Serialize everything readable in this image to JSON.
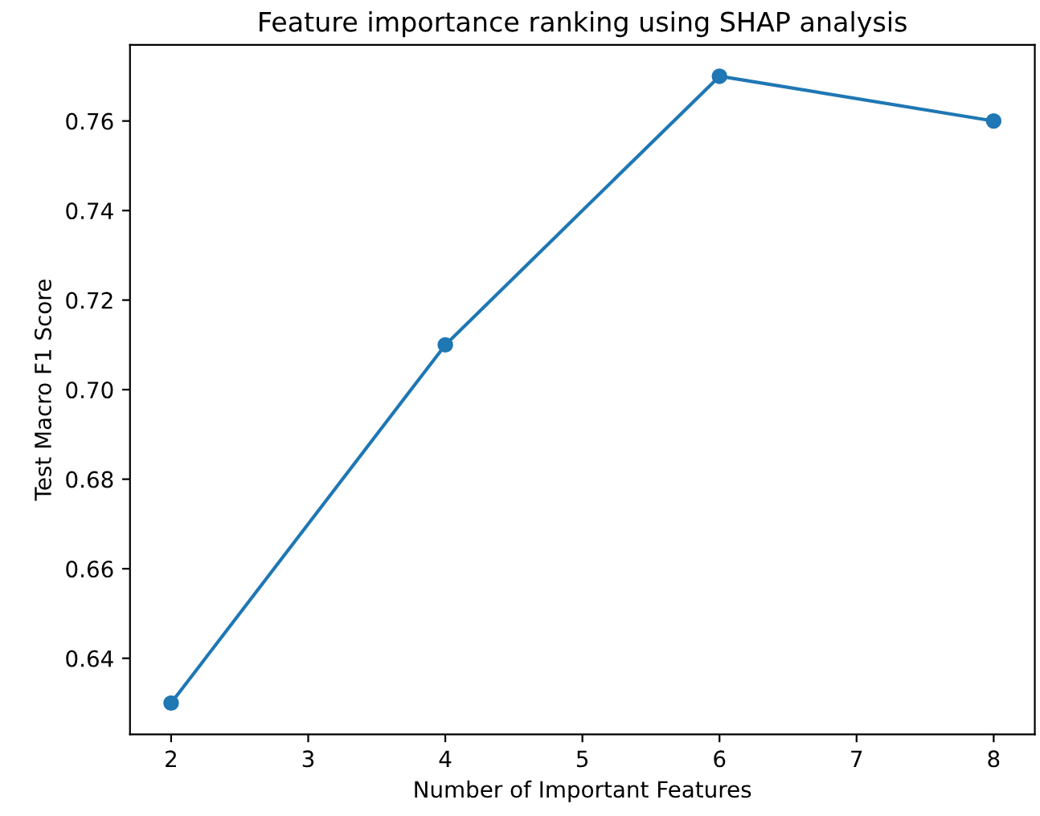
{
  "chart_data": {
    "type": "line",
    "title": "Feature importance ranking using SHAP analysis",
    "xlabel": "Number of Important Features",
    "ylabel": "Test Macro F1 Score",
    "x": [
      2,
      4,
      6,
      8
    ],
    "series": [
      {
        "color": "#1f77b4",
        "values": [
          0.63,
          0.71,
          0.77,
          0.76
        ]
      }
    ],
    "xlim": [
      1.7,
      8.3
    ],
    "xticks": [
      2,
      3,
      4,
      5,
      6,
      7,
      8
    ],
    "ylim": [
      0.623,
      0.777
    ],
    "yticks": [
      {
        "value": 0.64,
        "label": "0.64"
      },
      {
        "value": 0.66,
        "label": "0.66"
      },
      {
        "value": 0.68,
        "label": "0.68"
      },
      {
        "value": 0.7,
        "label": "0.70"
      },
      {
        "value": 0.72,
        "label": "0.72"
      },
      {
        "value": 0.74,
        "label": "0.74"
      },
      {
        "value": 0.76,
        "label": "0.76"
      }
    ],
    "marker": "circle",
    "line_style": "solid",
    "grid": false,
    "legend": false
  }
}
